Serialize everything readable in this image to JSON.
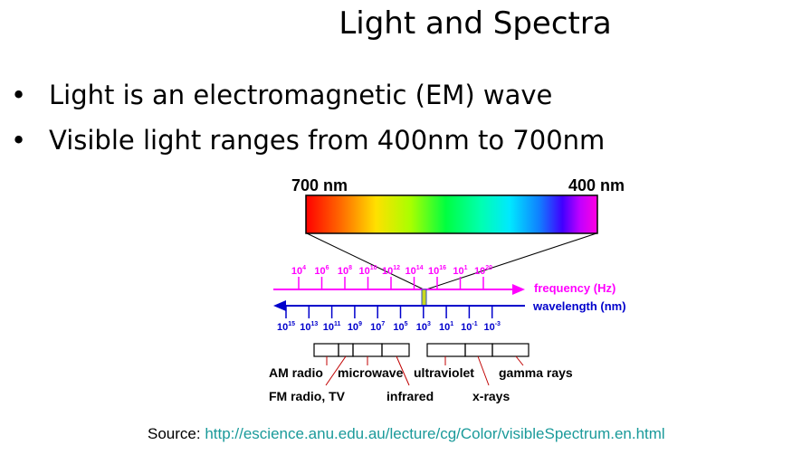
{
  "slide": {
    "title": "Light and Spectra",
    "bullets": [
      {
        "marker": "•",
        "text": "Light is an electromagnetic (EM) wave"
      },
      {
        "marker": "•",
        "text": "Visible light ranges from 400nm to 700nm"
      }
    ],
    "source": {
      "prefix": "Source:",
      "url": "http://escience.anu.edu.au/lecture/cg/Color/visibleSpectrum.en.html"
    }
  },
  "diagram": {
    "visible_left_label": "700 nm",
    "visible_right_label": "400 nm",
    "frequency_axis": {
      "label": "frequency (Hz)",
      "color": "#ff00ff",
      "ticks": [
        {
          "base": "10",
          "exp": "4"
        },
        {
          "base": "10",
          "exp": "6"
        },
        {
          "base": "10",
          "exp": "8"
        },
        {
          "base": "10",
          "exp": "10"
        },
        {
          "base": "10",
          "exp": "12"
        },
        {
          "base": "10",
          "exp": "14"
        },
        {
          "base": "10",
          "exp": "16"
        },
        {
          "base": "10",
          "exp": "1"
        },
        {
          "base": "10",
          "exp": "20"
        }
      ]
    },
    "wavelength_axis": {
      "label": "wavelength (nm)",
      "color": "#0000cc",
      "ticks": [
        {
          "base": "10",
          "exp": "15"
        },
        {
          "base": "10",
          "exp": "13"
        },
        {
          "base": "10",
          "exp": "11"
        },
        {
          "base": "10",
          "exp": "9"
        },
        {
          "base": "10",
          "exp": "7"
        },
        {
          "base": "10",
          "exp": "5"
        },
        {
          "base": "10",
          "exp": "3"
        },
        {
          "base": "10",
          "exp": "1"
        },
        {
          "base": "10",
          "exp": "-1"
        },
        {
          "base": "10",
          "exp": "-3"
        }
      ]
    },
    "bands": [
      "AM radio",
      "FM radio, TV",
      "microwave",
      "infrared",
      "ultraviolet",
      "x-rays",
      "gamma rays"
    ]
  }
}
